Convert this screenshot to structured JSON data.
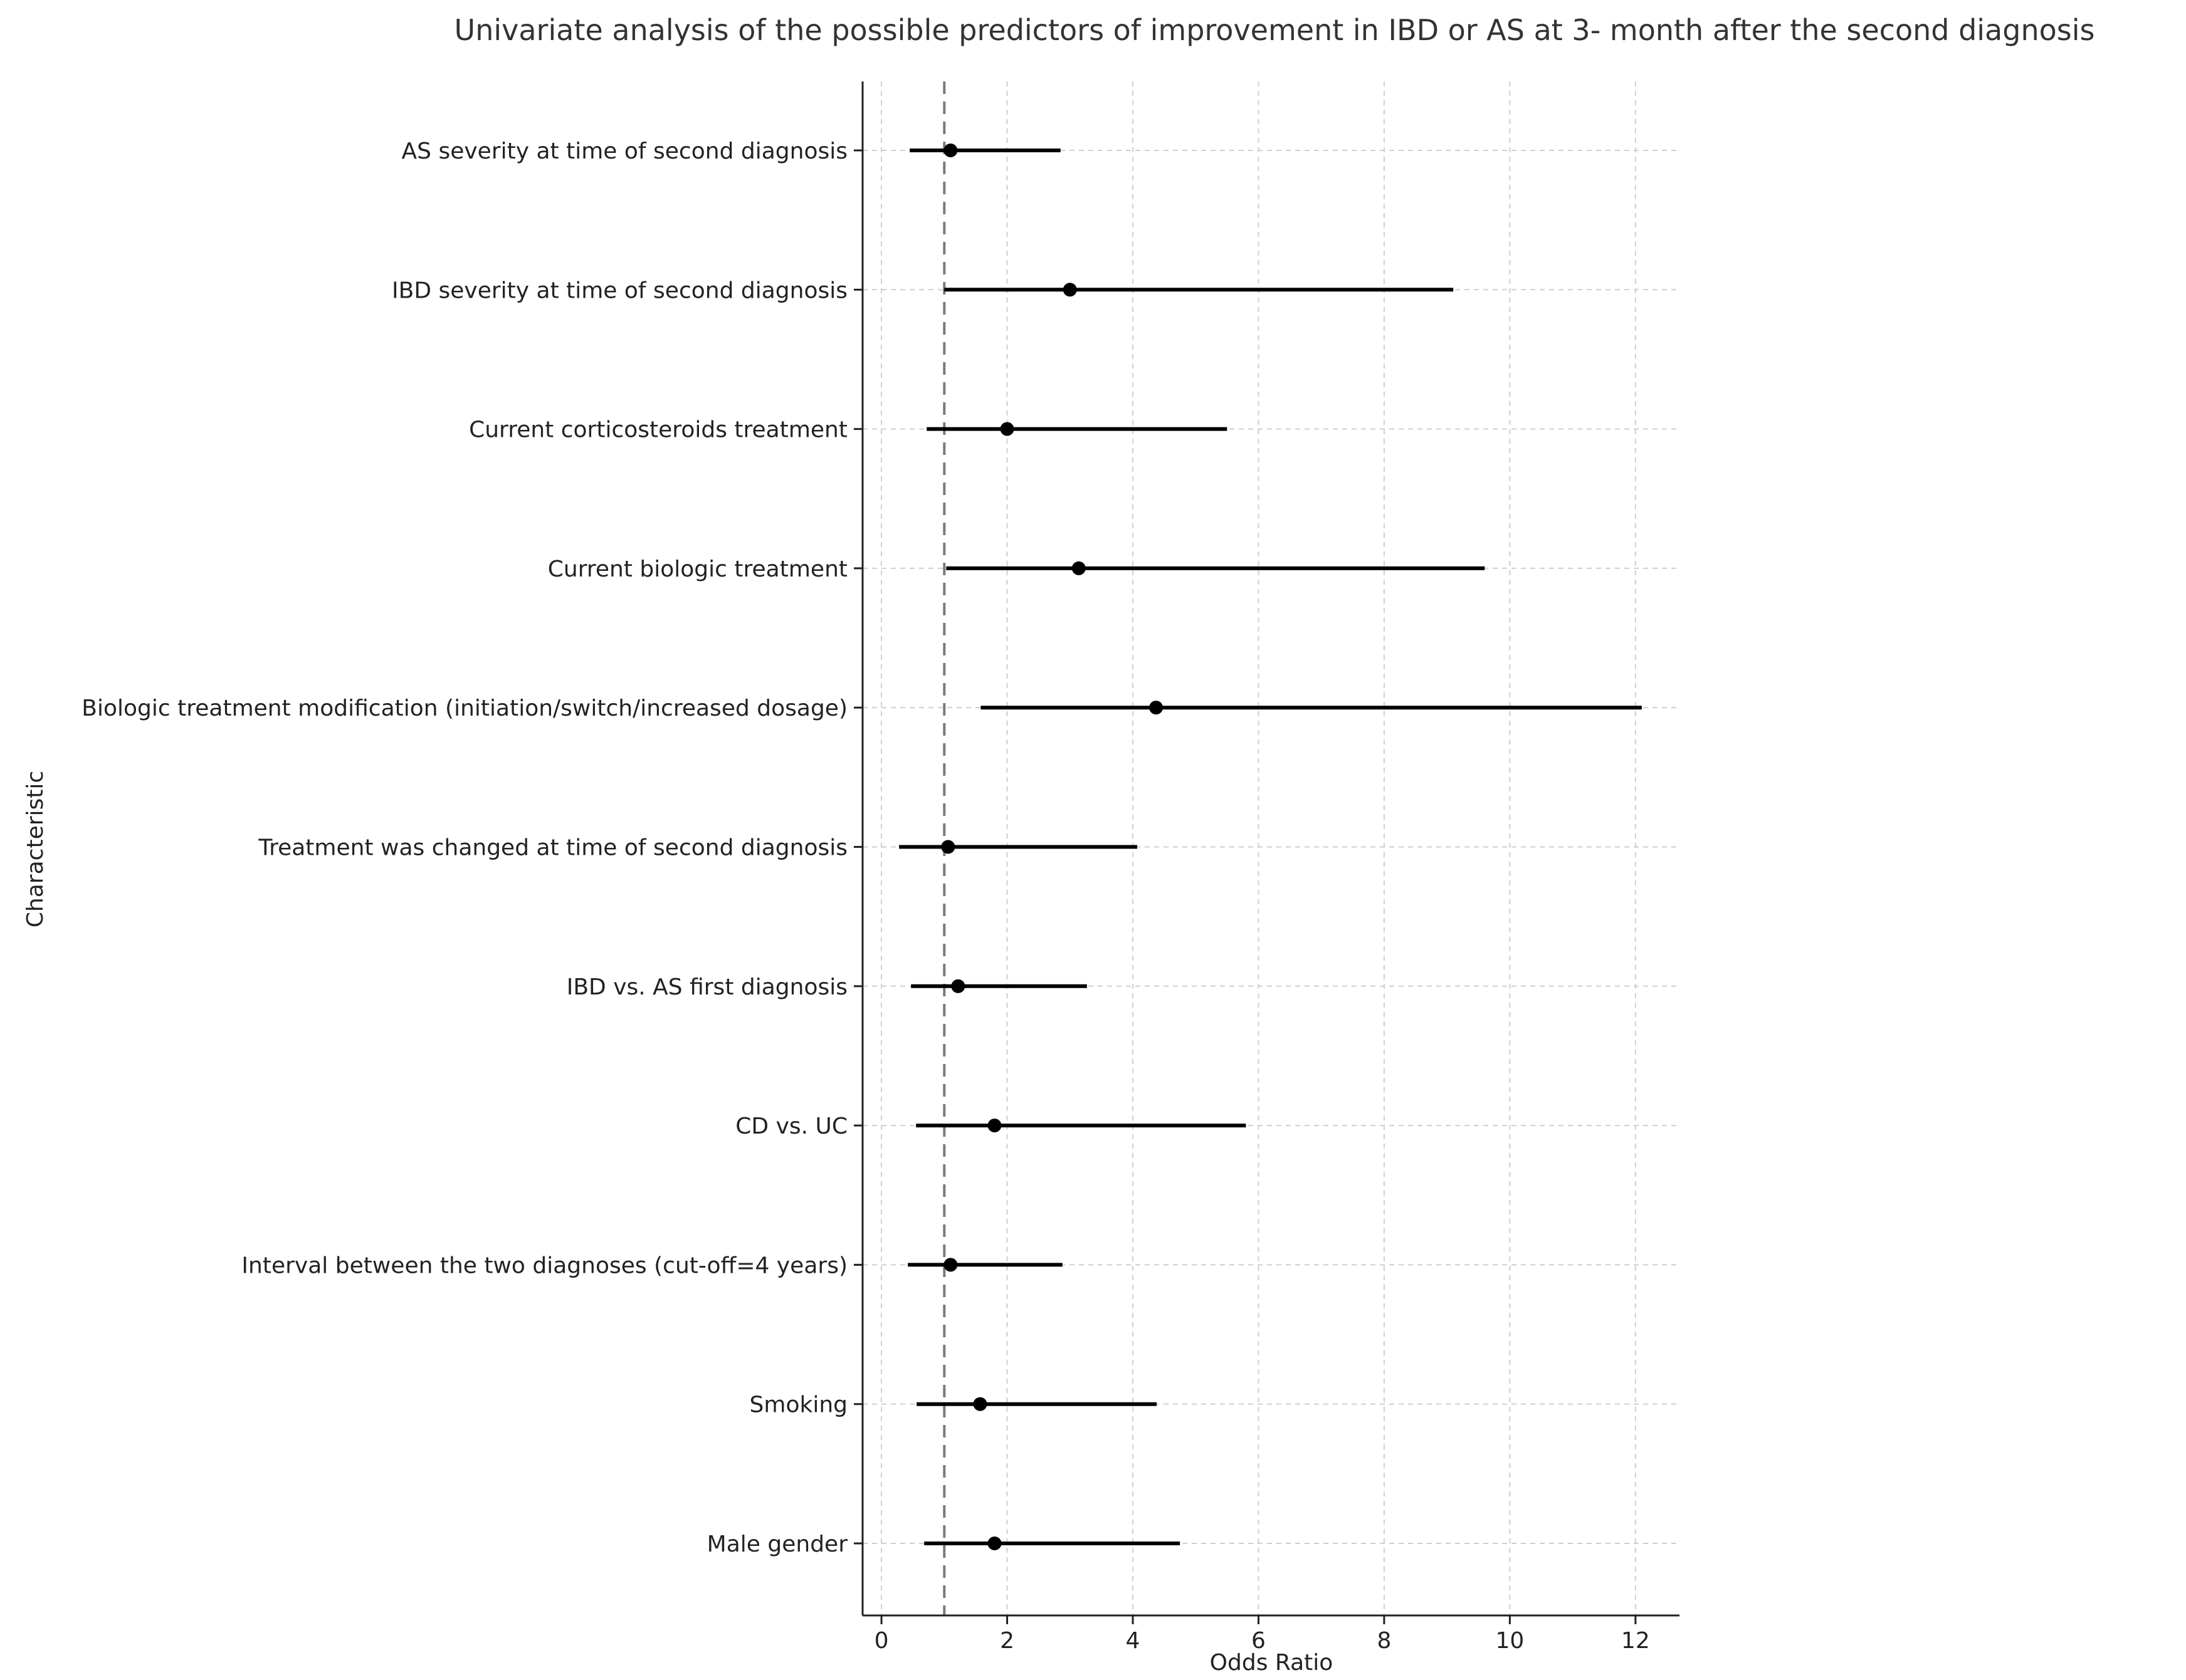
{
  "chart_data": {
    "type": "forest",
    "title": "Univariate analysis of the possible predictors of improvement in IBD or AS at 3- month after the second diagnosis",
    "xlabel": "Odds Ratio",
    "ylabel": "Characteristic",
    "xlim": [
      -0.3,
      12.7
    ],
    "xticks": [
      0,
      2,
      4,
      6,
      8,
      10,
      12
    ],
    "reference_line": 1,
    "grid": true,
    "rows": [
      {
        "label": "AS severity at time of second diagnosis",
        "or": 1.1,
        "ci_low": 0.45,
        "ci_high": 2.85
      },
      {
        "label": "IBD severity at time of second diagnosis",
        "or": 3.0,
        "ci_low": 1.0,
        "ci_high": 9.1
      },
      {
        "label": "Current corticosteroids treatment",
        "or": 2.0,
        "ci_low": 0.72,
        "ci_high": 5.5
      },
      {
        "label": "Current biologic treatment",
        "or": 3.14,
        "ci_low": 1.03,
        "ci_high": 9.6
      },
      {
        "label": "Biologic treatment modification (initiation/switch/increased dosage)",
        "or": 4.37,
        "ci_low": 1.58,
        "ci_high": 12.1
      },
      {
        "label": "Treatment was changed at time of second diagnosis",
        "or": 1.06,
        "ci_low": 0.28,
        "ci_high": 4.07
      },
      {
        "label": "IBD vs. AS first diagnosis",
        "or": 1.22,
        "ci_low": 0.47,
        "ci_high": 3.27
      },
      {
        "label": "CD vs. UC",
        "or": 1.8,
        "ci_low": 0.55,
        "ci_high": 5.8
      },
      {
        "label": "Interval between the two diagnoses (cut-off=4 years)",
        "or": 1.1,
        "ci_low": 0.42,
        "ci_high": 2.88
      },
      {
        "label": "Smoking",
        "or": 1.57,
        "ci_low": 0.56,
        "ci_high": 4.38
      },
      {
        "label": "Male gender",
        "or": 1.8,
        "ci_low": 0.68,
        "ci_high": 4.75
      }
    ]
  }
}
